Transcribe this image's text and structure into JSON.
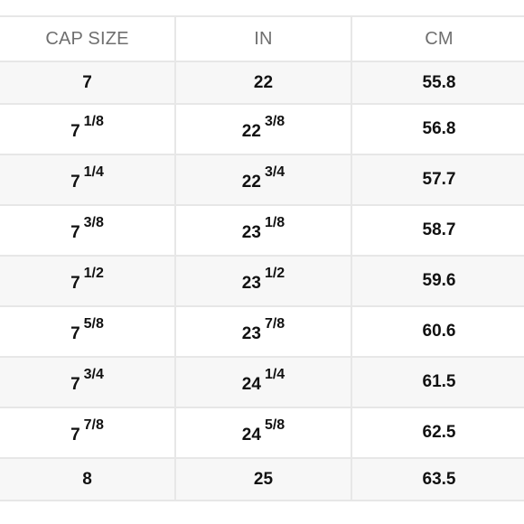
{
  "table": {
    "headers": [
      "CAP SIZE",
      "IN",
      "CM"
    ],
    "rows": [
      {
        "cap": {
          "whole": "7",
          "frac": ""
        },
        "in": {
          "whole": "22",
          "frac": ""
        },
        "cm": "55.8"
      },
      {
        "cap": {
          "whole": "7",
          "frac": "1/8"
        },
        "in": {
          "whole": "22",
          "frac": "3/8"
        },
        "cm": "56.8"
      },
      {
        "cap": {
          "whole": "7",
          "frac": "1/4"
        },
        "in": {
          "whole": "22",
          "frac": "3/4"
        },
        "cm": "57.7"
      },
      {
        "cap": {
          "whole": "7",
          "frac": "3/8"
        },
        "in": {
          "whole": "23",
          "frac": "1/8"
        },
        "cm": "58.7"
      },
      {
        "cap": {
          "whole": "7",
          "frac": "1/2"
        },
        "in": {
          "whole": "23",
          "frac": "1/2"
        },
        "cm": "59.6"
      },
      {
        "cap": {
          "whole": "7",
          "frac": "5/8"
        },
        "in": {
          "whole": "23",
          "frac": "7/8"
        },
        "cm": "60.6"
      },
      {
        "cap": {
          "whole": "7",
          "frac": "3/4"
        },
        "in": {
          "whole": "24",
          "frac": "1/4"
        },
        "cm": "61.5"
      },
      {
        "cap": {
          "whole": "7",
          "frac": "7/8"
        },
        "in": {
          "whole": "24",
          "frac": "5/8"
        },
        "cm": "62.5"
      },
      {
        "cap": {
          "whole": "8",
          "frac": ""
        },
        "in": {
          "whole": "25",
          "frac": ""
        },
        "cm": "63.5"
      }
    ]
  }
}
